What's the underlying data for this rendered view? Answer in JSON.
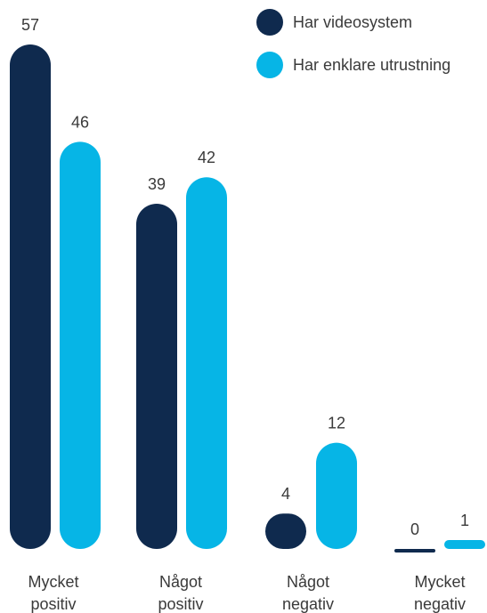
{
  "chart_data": {
    "type": "bar",
    "categories": [
      [
        "Mycket",
        "positiv"
      ],
      [
        "Något",
        "positiv"
      ],
      [
        "Något",
        "negativ"
      ],
      [
        "Mycket",
        "negativ"
      ]
    ],
    "series": [
      {
        "name": "Har videosystem",
        "values": [
          57,
          39,
          4,
          0
        ],
        "color": "#0f2a4e"
      },
      {
        "name": "Har enklare utrustning",
        "values": [
          46,
          42,
          12,
          1
        ],
        "color": "#06b5e6"
      }
    ],
    "ylim": [
      0,
      57
    ],
    "legend_position": "top-right",
    "grid": false
  }
}
